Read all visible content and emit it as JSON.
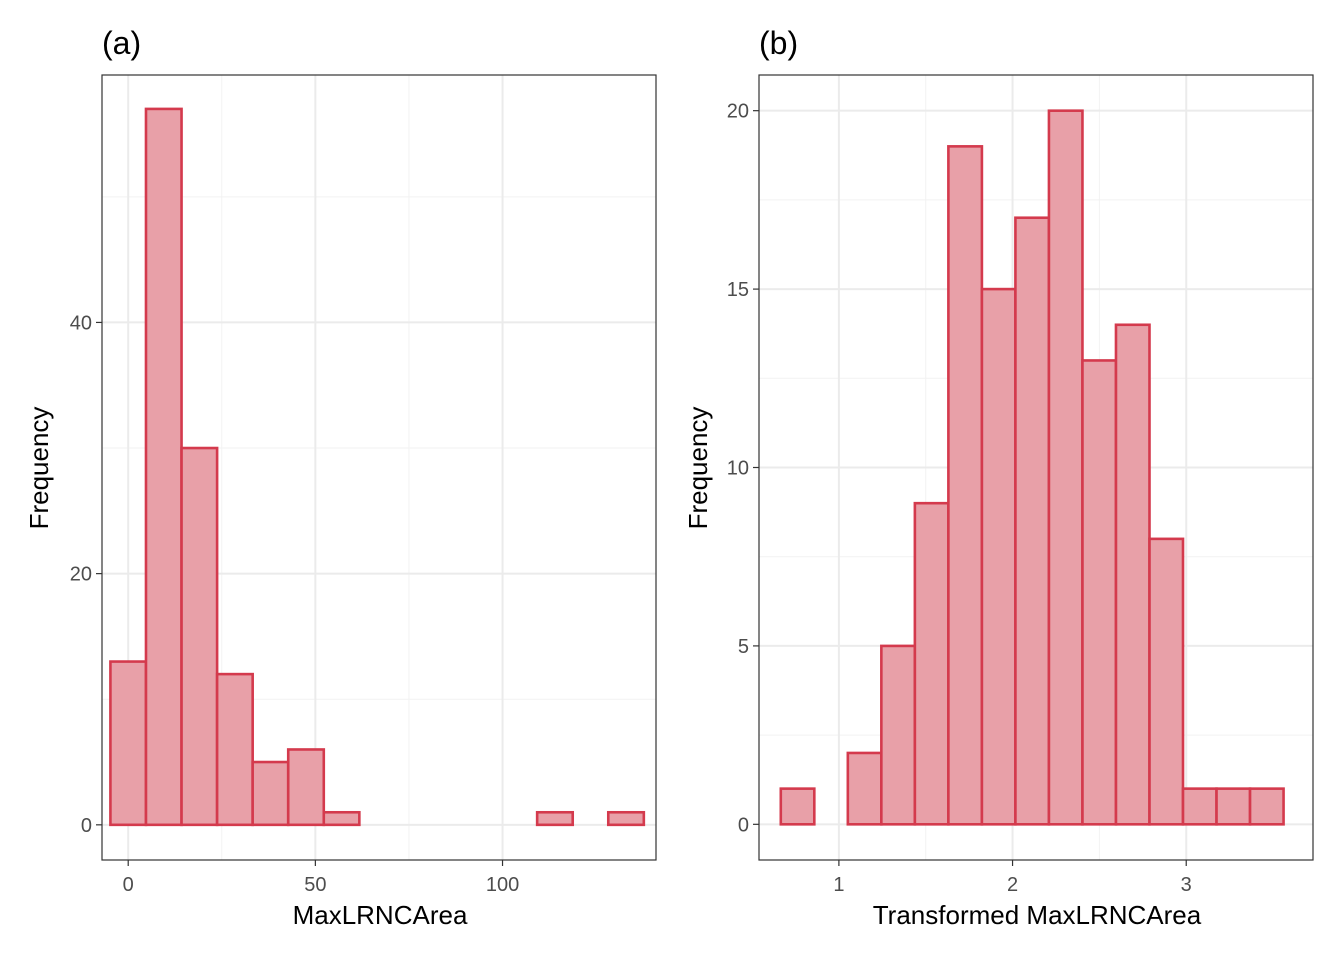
{
  "chart_data": [
    {
      "type": "bar",
      "panel_label": "(a)",
      "xlabel": "MaxLRNCArea",
      "ylabel": "Frequency",
      "x_ticks": [
        0,
        50,
        100
      ],
      "y_ticks": [
        0,
        20,
        40
      ],
      "xlim": [
        -7,
        141
      ],
      "ylim": [
        -2.8,
        59.7
      ],
      "bin_width": 9.5,
      "bins": [
        {
          "x": 0,
          "count": 13
        },
        {
          "x": 9.5,
          "count": 57
        },
        {
          "x": 19,
          "count": 30
        },
        {
          "x": 28.5,
          "count": 12
        },
        {
          "x": 38,
          "count": 5
        },
        {
          "x": 47.5,
          "count": 6
        },
        {
          "x": 57,
          "count": 1
        },
        {
          "x": 66.5,
          "count": 0
        },
        {
          "x": 76,
          "count": 0
        },
        {
          "x": 85.5,
          "count": 0
        },
        {
          "x": 95,
          "count": 0
        },
        {
          "x": 104.5,
          "count": 0
        },
        {
          "x": 114,
          "count": 1
        },
        {
          "x": 123.5,
          "count": 0
        },
        {
          "x": 133,
          "count": 1
        }
      ],
      "colors": {
        "fill": "#e8a0a8",
        "stroke": "#d43a4d"
      }
    },
    {
      "type": "bar",
      "panel_label": "(b)",
      "xlabel": "Transformed MaxLRNCArea",
      "ylabel": "Frequency",
      "x_ticks": [
        1,
        2,
        3
      ],
      "y_ticks": [
        0,
        5,
        10,
        15,
        20
      ],
      "xlim": [
        0.54,
        3.73
      ],
      "ylim": [
        -1,
        21
      ],
      "bin_width": 0.193,
      "bins": [
        {
          "x": 0.762,
          "count": 1
        },
        {
          "x": 0.955,
          "count": 0
        },
        {
          "x": 1.148,
          "count": 2
        },
        {
          "x": 1.341,
          "count": 5
        },
        {
          "x": 1.534,
          "count": 9
        },
        {
          "x": 1.727,
          "count": 19
        },
        {
          "x": 1.92,
          "count": 15
        },
        {
          "x": 2.113,
          "count": 17
        },
        {
          "x": 2.306,
          "count": 20
        },
        {
          "x": 2.499,
          "count": 13
        },
        {
          "x": 2.692,
          "count": 14
        },
        {
          "x": 2.885,
          "count": 8
        },
        {
          "x": 3.078,
          "count": 1
        },
        {
          "x": 3.271,
          "count": 1
        },
        {
          "x": 3.464,
          "count": 1
        }
      ],
      "colors": {
        "fill": "#e8a0a8",
        "stroke": "#d43a4d"
      }
    }
  ]
}
